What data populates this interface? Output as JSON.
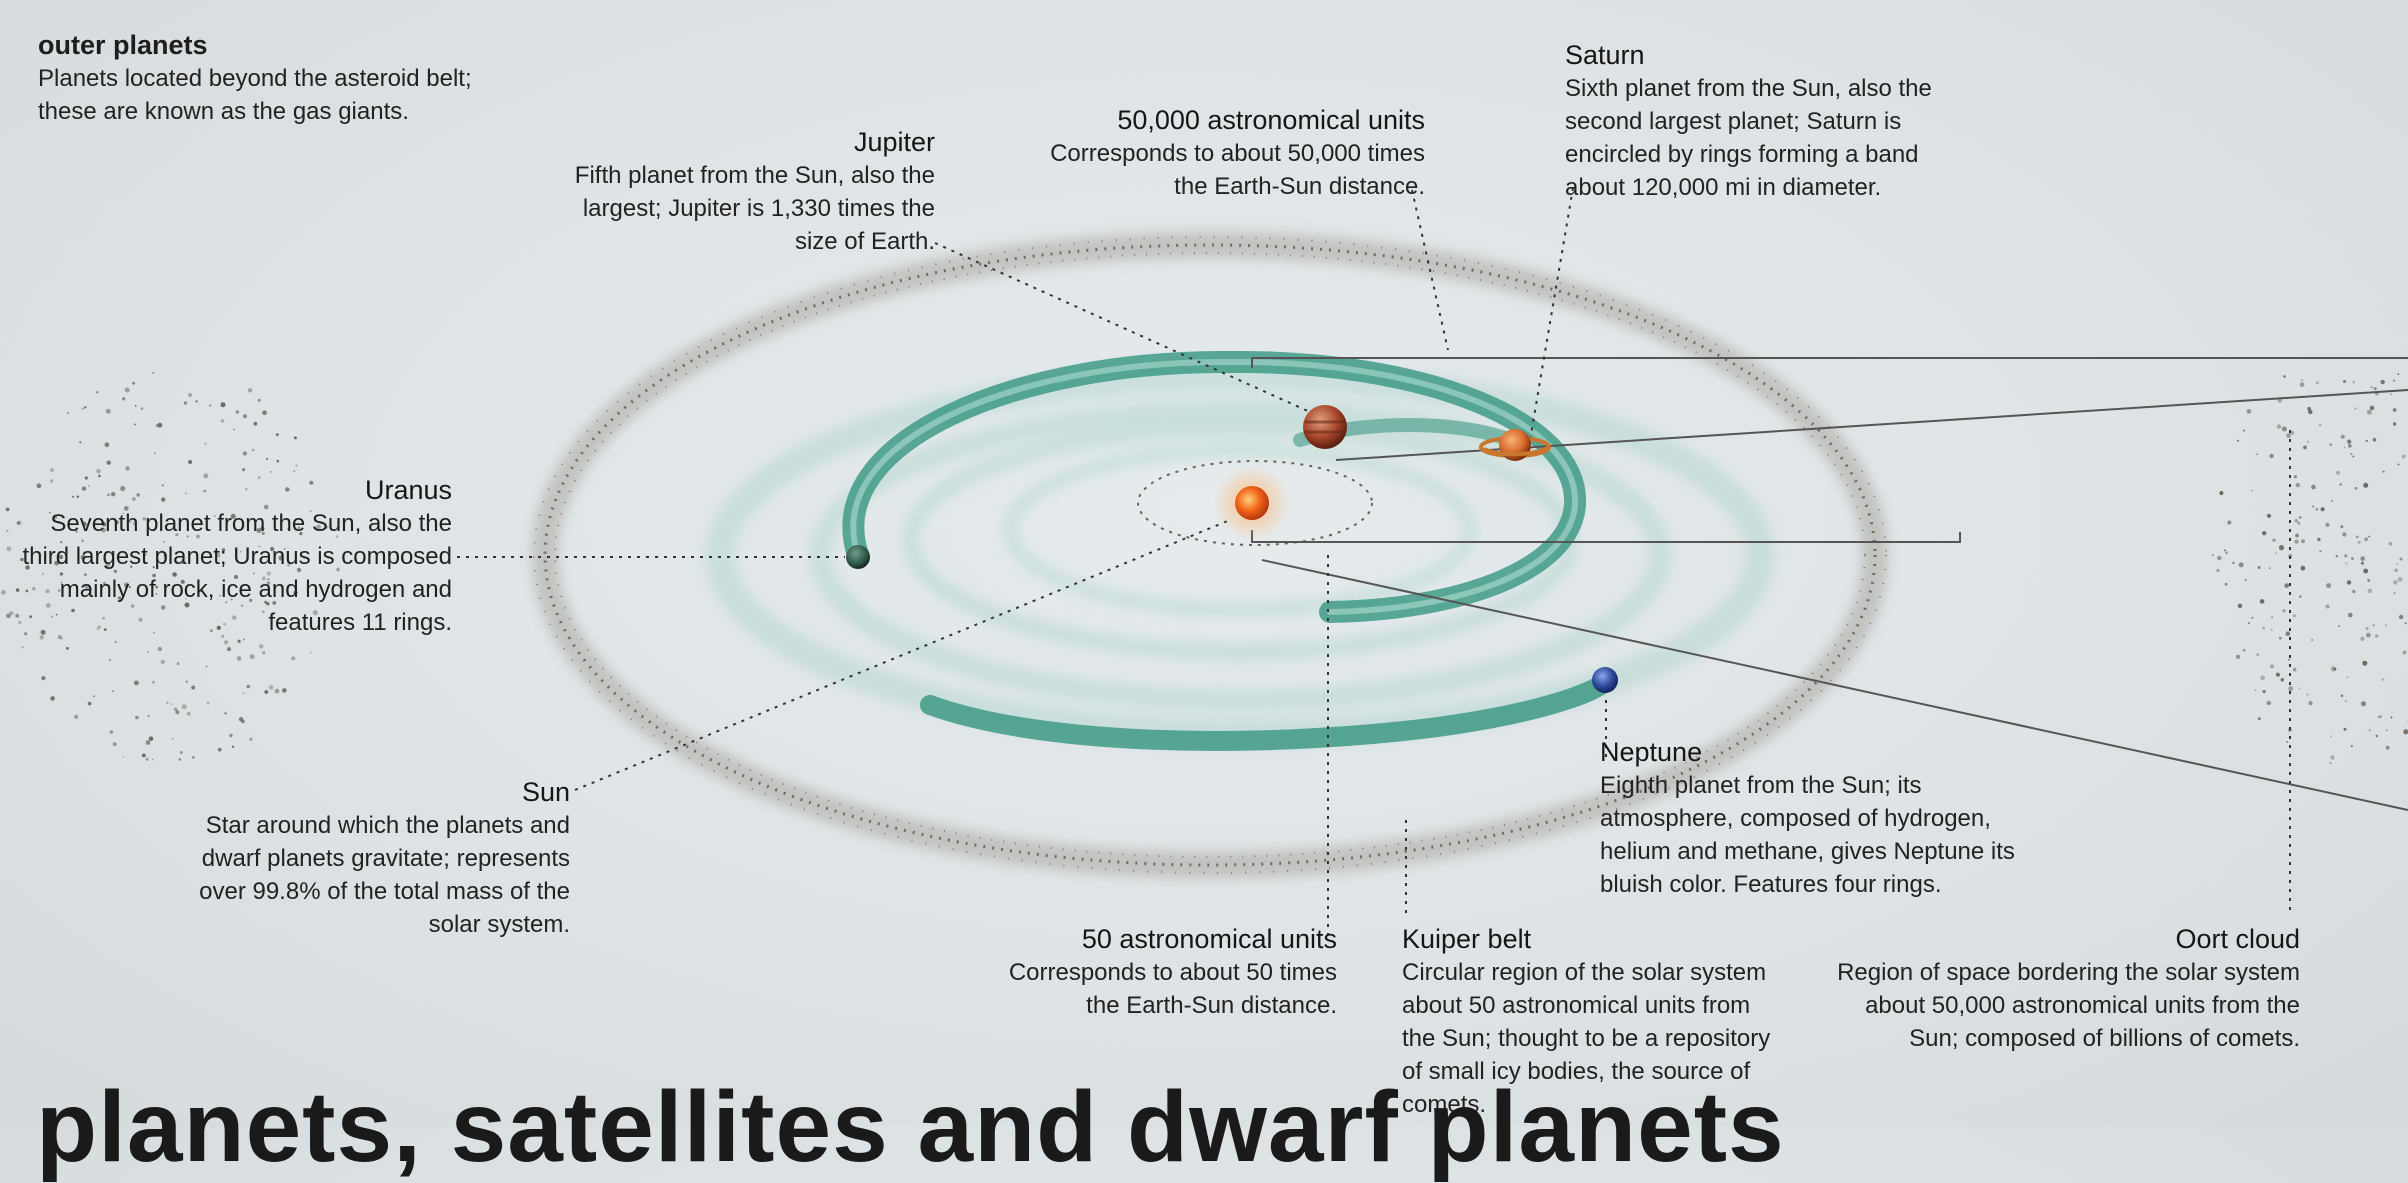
{
  "heading": {
    "title": "outer planets",
    "text": "Planets located beyond the asteroid belt; these are known as the gas giants."
  },
  "labels": {
    "jupiter": {
      "title": "Jupiter",
      "text": "Fifth planet from the Sun, also the largest; Jupiter is 1,330 times the size of Earth."
    },
    "au50000": {
      "title": "50,000 astronomical units",
      "text": "Corresponds to about 50,000 times the Earth-Sun distance."
    },
    "saturn": {
      "title": "Saturn",
      "text": "Sixth planet from the Sun, also the second largest planet; Saturn is encircled by rings forming a band about 120,000 mi in diameter."
    },
    "uranus": {
      "title": "Uranus",
      "text": "Seventh planet from the Sun, also the third largest planet; Uranus is composed mainly of rock, ice and hydrogen and features 11 rings."
    },
    "sun": {
      "title": "Sun",
      "text": "Star around which the planets and dwarf planets gravitate; represents over 99.8% of the total mass of the solar system."
    },
    "neptune": {
      "title": "Neptune",
      "text": "Eighth planet from the Sun; its atmosphere, composed of hydrogen, helium and methane, gives Neptune its bluish color. Features four rings."
    },
    "au50": {
      "title": "50 astronomical units",
      "text": "Corresponds to about 50 times the Earth-Sun distance."
    },
    "kuiper": {
      "title": "Kuiper belt",
      "text": "Circular region of the solar system about 50 astronomical units from the Sun; thought to be a repository of small icy bodies, the source of comets."
    },
    "oort": {
      "title": "Oort cloud",
      "text": "Region of space bordering the solar system about 50,000 astronomical units from the Sun; composed of billions of comets."
    }
  },
  "bottom_heading": "planets, satellites and dwarf planets",
  "colors": {
    "orbit": "#3f9a86",
    "belt": "#7a7468",
    "sun": "#f2661a",
    "jupiter": "#a8452a",
    "saturn": "#d86a2c",
    "uranus": "#2e5548",
    "neptune": "#2f4a9a",
    "leader": "#333333"
  }
}
